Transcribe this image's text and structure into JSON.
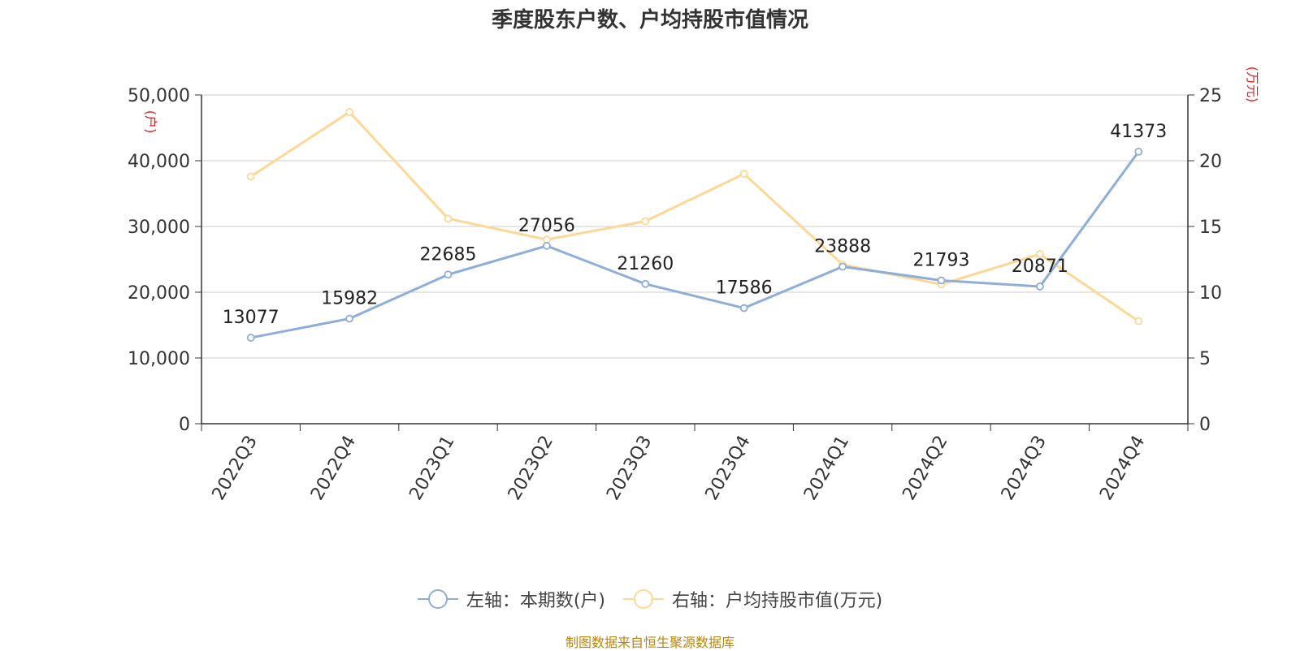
{
  "chart_data": {
    "type": "line",
    "title": "季度股东户数、户均持股市值情况",
    "categories": [
      "2022Q3",
      "2022Q4",
      "2023Q1",
      "2023Q2",
      "2023Q3",
      "2023Q4",
      "2024Q1",
      "2024Q2",
      "2024Q3",
      "2024Q4"
    ],
    "left_axis": {
      "unit_label": "(户)",
      "ylim": [
        0,
        50000
      ],
      "ticks": [
        0,
        10000,
        20000,
        30000,
        40000,
        50000
      ],
      "tick_labels": [
        "0",
        "10,000",
        "20,000",
        "30,000",
        "40,000",
        "50,000"
      ]
    },
    "right_axis": {
      "unit_label": "(万元)",
      "ylim": [
        0,
        25
      ],
      "ticks": [
        0,
        5,
        10,
        15,
        20,
        25
      ],
      "tick_labels": [
        "0",
        "5",
        "10",
        "15",
        "20",
        "25"
      ]
    },
    "series": [
      {
        "name": "左轴：本期数(户)",
        "axis": "left",
        "color": "#8eaed9",
        "values": [
          13077,
          15982,
          22685,
          27056,
          21260,
          17586,
          23888,
          21793,
          20871,
          41373
        ],
        "data_labels": [
          "13077",
          "15982",
          "22685",
          "27056",
          "21260",
          "17586",
          "23888",
          "21793",
          "20871",
          "41373"
        ]
      },
      {
        "name": "右轴：户均持股市值(万元)",
        "axis": "right",
        "color": "#fcd896",
        "values": [
          18.8,
          23.7,
          15.6,
          14.0,
          15.4,
          19.0,
          12.1,
          10.6,
          12.9,
          7.8
        ]
      }
    ],
    "grid": true,
    "legend_position": "bottom-center"
  },
  "footer": "制图数据来自恒生聚源数据库"
}
